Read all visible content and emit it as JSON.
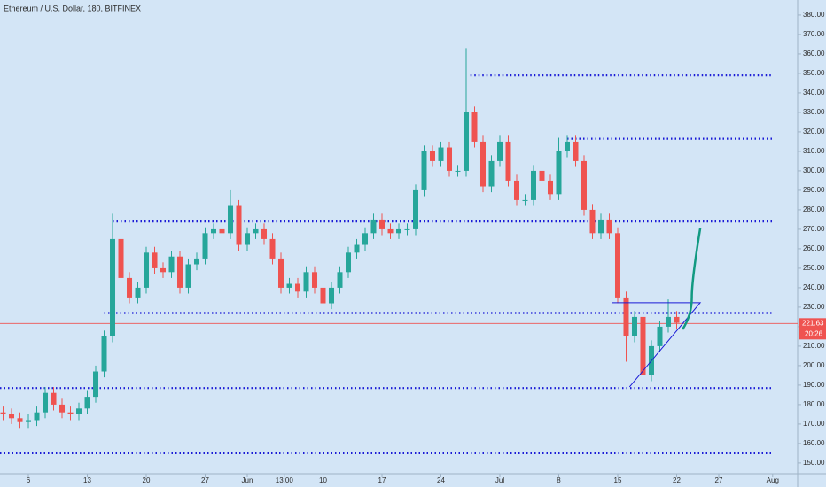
{
  "chart_data": {
    "type": "candlestick",
    "title": "Ethereum / U.S. Dollar, 180, BITFINEX",
    "up_color": "#26a69a",
    "down_color": "#ef5350",
    "x": [
      -3,
      -2,
      -1,
      0,
      1,
      2,
      3,
      4,
      5,
      6,
      7,
      8,
      9,
      10,
      11,
      12,
      13,
      14,
      15,
      16,
      17,
      18,
      19,
      20,
      21,
      22,
      23,
      24,
      25,
      26,
      27,
      28,
      29,
      30,
      31,
      32,
      33,
      34,
      35,
      36,
      37,
      38,
      39,
      40,
      41,
      42,
      43,
      44,
      45,
      46,
      47,
      48,
      49,
      50,
      51,
      52,
      53,
      54,
      55,
      56,
      57,
      58,
      59,
      60,
      61,
      62,
      63,
      64,
      65,
      66,
      67,
      68,
      69,
      70,
      71,
      72,
      73,
      74,
      75,
      76,
      77
    ],
    "open": [
      176,
      175,
      173,
      171,
      172,
      176,
      186,
      180,
      176,
      175,
      178,
      184,
      197,
      215,
      265,
      245,
      235,
      240,
      258,
      250,
      248,
      256,
      240,
      252,
      255,
      268,
      270,
      268,
      282,
      262,
      268,
      270,
      265,
      255,
      240,
      242,
      238,
      248,
      240,
      232,
      240,
      248,
      258,
      262,
      268,
      275,
      270,
      268,
      270,
      270,
      290,
      310,
      305,
      312,
      300,
      300,
      330,
      315,
      292,
      305,
      315,
      295,
      285,
      285,
      300,
      295,
      288,
      310,
      315,
      305,
      280,
      268,
      275,
      268,
      235,
      215,
      225,
      195,
      210,
      220,
      225
    ],
    "high": [
      179,
      178,
      176,
      175,
      179,
      189,
      189,
      183,
      179,
      181,
      187,
      200,
      218,
      278,
      268,
      248,
      243,
      261,
      261,
      253,
      259,
      259,
      255,
      258,
      271,
      273,
      273,
      290,
      285,
      271,
      273,
      273,
      268,
      258,
      245,
      245,
      251,
      251,
      243,
      243,
      251,
      261,
      265,
      271,
      278,
      278,
      273,
      273,
      273,
      293,
      313,
      313,
      315,
      315,
      303,
      363,
      333,
      318,
      308,
      318,
      318,
      298,
      288,
      303,
      303,
      298,
      317,
      318,
      318,
      308,
      283,
      278,
      278,
      271,
      238,
      228,
      228,
      213,
      223,
      234,
      228
    ],
    "low": [
      172,
      170,
      168,
      168,
      169,
      173,
      177,
      173,
      172,
      172,
      175,
      181,
      194,
      212,
      242,
      232,
      232,
      237,
      247,
      245,
      245,
      237,
      237,
      249,
      252,
      265,
      265,
      265,
      259,
      259,
      265,
      262,
      252,
      237,
      237,
      235,
      235,
      237,
      229,
      229,
      237,
      245,
      255,
      259,
      265,
      267,
      265,
      265,
      267,
      267,
      287,
      302,
      302,
      297,
      297,
      297,
      312,
      289,
      289,
      302,
      292,
      282,
      282,
      282,
      292,
      285,
      285,
      307,
      302,
      277,
      265,
      265,
      265,
      232,
      202,
      212,
      189,
      192,
      207,
      217,
      219
    ],
    "close": [
      175,
      173,
      171,
      172,
      176,
      186,
      180,
      176,
      175,
      178,
      184,
      197,
      215,
      265,
      245,
      235,
      240,
      258,
      250,
      248,
      256,
      240,
      252,
      255,
      268,
      270,
      268,
      282,
      262,
      268,
      270,
      265,
      255,
      240,
      242,
      238,
      248,
      240,
      232,
      240,
      248,
      258,
      262,
      268,
      275,
      270,
      268,
      270,
      270,
      290,
      310,
      305,
      312,
      300,
      300,
      330,
      315,
      292,
      305,
      315,
      295,
      285,
      285,
      300,
      295,
      288,
      310,
      315,
      305,
      280,
      268,
      275,
      268,
      235,
      215,
      225,
      195,
      210,
      220,
      225,
      222
    ],
    "xlim": [
      -3.37,
      91.37
    ],
    "xticks": [
      {
        "value": 0,
        "label": "6"
      },
      {
        "value": 7,
        "label": "13"
      },
      {
        "value": 14,
        "label": "20"
      },
      {
        "value": 21,
        "label": "27"
      },
      {
        "value": 26,
        "label": "Jun"
      },
      {
        "value": 30.4,
        "label": "13:00"
      },
      {
        "value": 35,
        "label": "10"
      },
      {
        "value": 42,
        "label": "17"
      },
      {
        "value": 49,
        "label": "24"
      },
      {
        "value": 56,
        "label": "Jul"
      },
      {
        "value": 63,
        "label": "8"
      },
      {
        "value": 70,
        "label": "15"
      },
      {
        "value": 77,
        "label": "22"
      },
      {
        "value": 82,
        "label": "27"
      },
      {
        "value": 88.4,
        "label": "Aug"
      }
    ],
    "ylim": [
      144.5,
      387.7
    ],
    "yticks": [
      {
        "value": 150,
        "label": "150.00"
      },
      {
        "value": 160,
        "label": "160.00"
      },
      {
        "value": 170,
        "label": "170.00"
      },
      {
        "value": 180,
        "label": "180.00"
      },
      {
        "value": 190,
        "label": "190.00"
      },
      {
        "value": 200,
        "label": "200.00"
      },
      {
        "value": 210,
        "label": "210.00"
      },
      {
        "value": 220,
        "label": "220.00"
      },
      {
        "value": 230,
        "label": "230.00"
      },
      {
        "value": 240,
        "label": "240.00"
      },
      {
        "value": 250,
        "label": "250.00"
      },
      {
        "value": 260,
        "label": "260.00"
      },
      {
        "value": 270,
        "label": "270.00"
      },
      {
        "value": 280,
        "label": "280.00"
      },
      {
        "value": 290,
        "label": "290.00"
      },
      {
        "value": 300,
        "label": "300.00"
      },
      {
        "value": 310,
        "label": "310.00"
      },
      {
        "value": 320,
        "label": "320.00"
      },
      {
        "value": 330,
        "label": "330.00"
      },
      {
        "value": 340,
        "label": "340.00"
      },
      {
        "value": 350,
        "label": "350.00"
      },
      {
        "value": 360,
        "label": "360.00"
      },
      {
        "value": 370,
        "label": "370.00"
      },
      {
        "value": 380,
        "label": "380.00"
      }
    ],
    "last_price": {
      "value": 221.63,
      "label": "221.63"
    },
    "countdown": "20:26",
    "levels": [
      {
        "y": 349,
        "x": [
          52.5,
          88.4
        ]
      },
      {
        "y": 316.5,
        "x": [
          64,
          88.4
        ]
      },
      {
        "y": 274,
        "x": [
          10,
          88.4
        ]
      },
      {
        "y": 227,
        "x": [
          9,
          88.4
        ]
      },
      {
        "y": 188.5,
        "x": [
          -3.37,
          88.4
        ]
      },
      {
        "y": 155,
        "x": [
          -3.37,
          88.4
        ]
      }
    ],
    "triangle": {
      "x": [
        69.3,
        79.8,
        71.4
      ],
      "y": [
        232.3,
        232.3,
        189.1
      ]
    },
    "projection": {
      "x": [
        77.7,
        78.8,
        79.8
      ],
      "y": [
        218.6,
        235,
        270.5
      ]
    }
  }
}
